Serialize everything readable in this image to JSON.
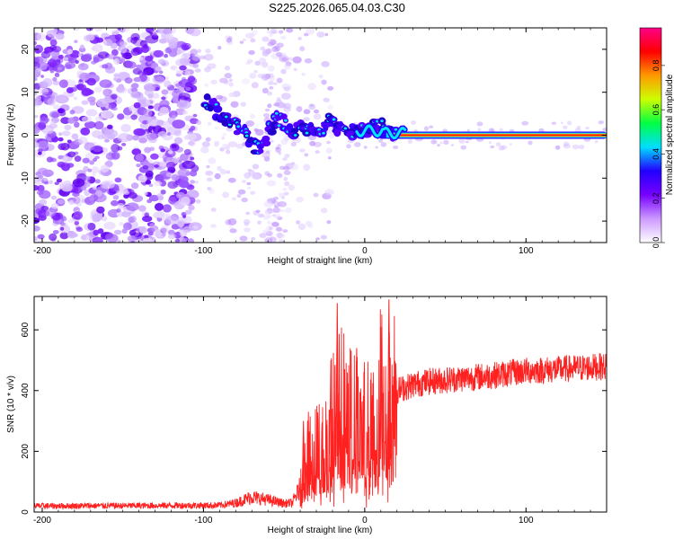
{
  "title": "S225.2026.065.04.03.C30",
  "chart_data": [
    {
      "type": "heatmap",
      "panel": "spectrogram",
      "xlabel": "Height of straight line (km)",
      "ylabel": "Frequency (Hz)",
      "xlim": [
        -205,
        150
      ],
      "ylim": [
        -25,
        25
      ],
      "x_ticks": [
        -200,
        -100,
        0,
        100
      ],
      "y_ticks": [
        -20,
        -10,
        0,
        10,
        20
      ],
      "ridge": {
        "description": "dominant frequency track",
        "points": [
          [
            -100,
            8
          ],
          [
            -95,
            7
          ],
          [
            -90,
            5
          ],
          [
            -85,
            3
          ],
          [
            -80,
            2
          ],
          [
            -75,
            1
          ],
          [
            -70,
            -2
          ],
          [
            -65,
            -4
          ],
          [
            -60,
            1
          ],
          [
            -55,
            4
          ],
          [
            -50,
            3
          ],
          [
            -45,
            0
          ],
          [
            -40,
            2
          ],
          [
            -35,
            1
          ],
          [
            -30,
            0
          ],
          [
            -25,
            2
          ],
          [
            -20,
            4
          ],
          [
            -15,
            1
          ],
          [
            -10,
            0
          ],
          [
            -5,
            1
          ],
          [
            0,
            1
          ],
          [
            5,
            2
          ],
          [
            10,
            2
          ],
          [
            15,
            1
          ],
          [
            20,
            0
          ],
          [
            40,
            0
          ],
          [
            60,
            0
          ],
          [
            80,
            0
          ],
          [
            100,
            0
          ],
          [
            120,
            0
          ],
          [
            150,
            0
          ]
        ]
      },
      "colorbar": {
        "label": "Normalized spectral amplitude",
        "range": [
          0,
          1
        ],
        "ticks": [
          0.0,
          0.2,
          0.4,
          0.6,
          0.8
        ],
        "colors": [
          "#ffffff",
          "#cc99ff",
          "#7700ff",
          "#2200ff",
          "#00ddff",
          "#00ff44",
          "#ccff00",
          "#ff9900",
          "#ff0000",
          "#ff0088"
        ]
      }
    },
    {
      "type": "line",
      "panel": "snr",
      "color": "#ff2020",
      "xlabel": "Height of straight line (km)",
      "ylabel": "SNR (10 * v/v)",
      "xlim": [
        -205,
        150
      ],
      "ylim": [
        0,
        710
      ],
      "x_ticks": [
        -200,
        -100,
        0,
        100
      ],
      "y_ticks": [
        0,
        200,
        400,
        600
      ],
      "envelope": {
        "x": [
          -205,
          -90,
          -80,
          -70,
          -60,
          -50,
          -45,
          -40,
          -35,
          -30,
          -25,
          -20,
          -15,
          -10,
          -5,
          0,
          5,
          10,
          15,
          20,
          30,
          40,
          60,
          80,
          100,
          120,
          150
        ],
        "y": [
          20,
          22,
          30,
          50,
          40,
          28,
          30,
          80,
          170,
          220,
          200,
          280,
          330,
          290,
          270,
          260,
          280,
          350,
          380,
          400,
          420,
          430,
          440,
          450,
          465,
          470,
          480
        ]
      },
      "peaks": [
        {
          "x": -17,
          "y": 688
        },
        {
          "x": 15,
          "y": 700
        },
        {
          "x": -5,
          "y": 540
        },
        {
          "x": 10,
          "y": 610
        },
        {
          "x": -21,
          "y": 500
        },
        {
          "x": -38,
          "y": 300
        }
      ]
    }
  ]
}
